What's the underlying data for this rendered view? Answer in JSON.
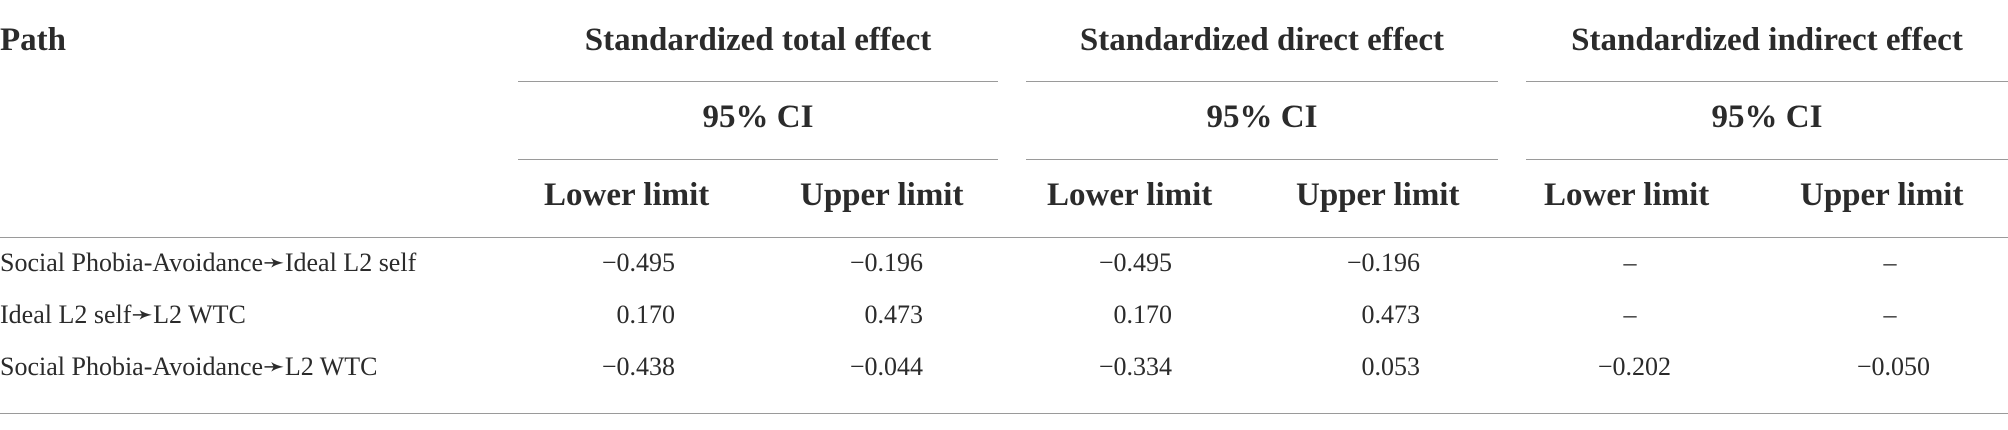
{
  "table": {
    "header": {
      "path": "Path",
      "groups": [
        {
          "title": "Standardized total effect",
          "ci": "95% CI",
          "lower": "Lower limit",
          "upper": "Upper limit"
        },
        {
          "title": "Standardized direct effect",
          "ci": "95% CI",
          "lower": "Lower limit",
          "upper": "Upper limit"
        },
        {
          "title": "Standardized indirect effect",
          "ci": "95% CI",
          "lower": "Lower limit",
          "upper": "Upper limit"
        }
      ]
    },
    "rows": [
      {
        "path": "Social Phobia-Avoidance➛Ideal L2 self",
        "values": [
          "−0.495",
          "−0.196",
          "−0.495",
          "−0.196",
          "–",
          "–"
        ]
      },
      {
        "path": "Ideal L2 self➛L2 WTC",
        "values": [
          "0.170",
          "0.473",
          "0.170",
          "0.473",
          "–",
          "–"
        ]
      },
      {
        "path": "Social Phobia-Avoidance➛L2 WTC",
        "values": [
          "−0.438",
          "−0.044",
          "−0.334",
          "0.053",
          "−0.202",
          "−0.050"
        ]
      }
    ]
  }
}
